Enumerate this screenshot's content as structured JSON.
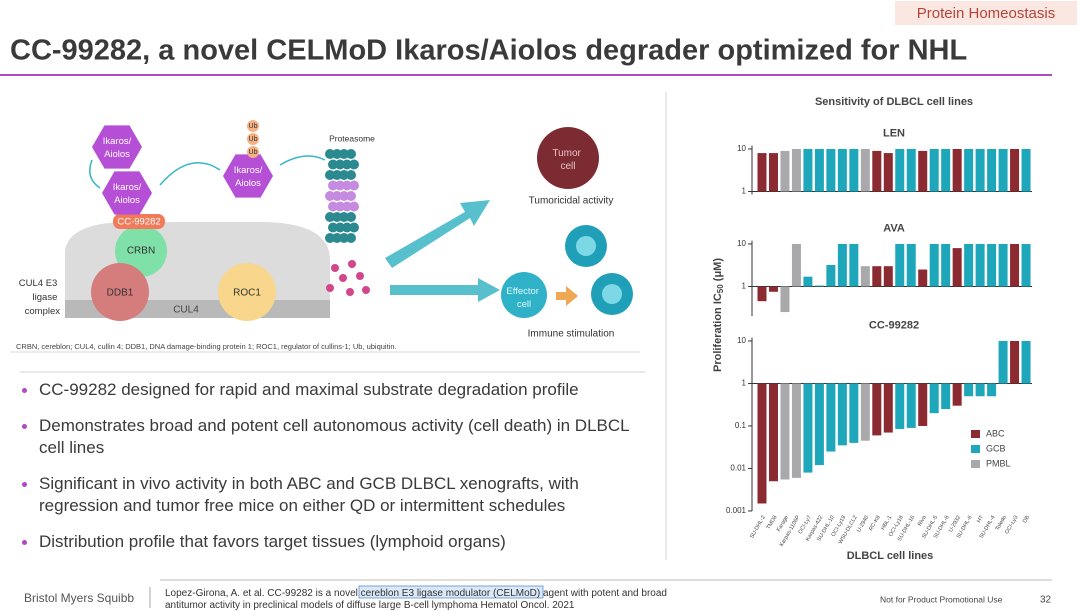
{
  "tag": "Protein Homeostasis",
  "title": "CC-99282, a novel CELMoD Ikaros/Aiolos degrader optimized for NHL",
  "diagram": {
    "ikaros": [
      "Ikaros/",
      "Aiolos"
    ],
    "ub": "Ub",
    "drug": "CC-99282",
    "crbn": "CRBN",
    "ddb1": "DDB1",
    "roc1": "ROC1",
    "cul4": "CUL4",
    "complex": [
      "CUL4 E3",
      "ligase",
      "complex"
    ],
    "proteasome": "Proteasome",
    "tumor": [
      "Tumor",
      "cell"
    ],
    "tumoricidal": "Tumoricidal activity",
    "effector": [
      "Effector",
      "cell"
    ],
    "immune": "Immune stimulation",
    "caption": "CRBN, cereblon; CUL4, cullin 4; DDB1, DNA damage-binding protein 1; ROC1, regulator of cullins-1; Ub, ubiquitin."
  },
  "bullets": [
    "CC-99282 designed for rapid and maximal substrate degradation profile",
    "Demonstrates broad and potent cell autonomous activity (cell death) in DLBCL cell lines",
    "Significant in vivo activity in both ABC and GCB DLBCL xenografts, with regression and tumor free mice on either QD or intermittent schedules",
    "Distribution profile that favors target tissues (lymphoid organs)"
  ],
  "footer": {
    "logo": "Bristol Myers Squibb",
    "citation": [
      "Lopez-Girona, A. et al. CC-99282 is a ",
      "novel cereblon E3 ligase modulator",
      " (CELMoD) agent with potent and broad",
      "antitumor activity in preclinical models of diffuse large B-cell lymphoma Hematol Oncol. 2021"
    ],
    "notice": "Not for Product Promotional Use",
    "page": "32"
  },
  "chart_data": {
    "type": "bar",
    "title": "Sensitivity of DLBCL cell lines",
    "x_label": "DLBCL cell lines",
    "y_label": {
      "main": "Proliferation IC",
      "sub": "50",
      "unit": "(μM)"
    },
    "log_scale": true,
    "categories": [
      "SU-DHL-2",
      "TMD8",
      "Farage",
      "Karpas-1106P",
      "OCI-Ly7",
      "Karpas-422",
      "SU-DHL-10",
      "OCI-Ly19",
      "WSU-DLCL2",
      "U-2940",
      "RC-K8",
      "HBL-1",
      "OCI-Ly18",
      "SU-DHL-16",
      "Riva",
      "SU-DHL-5",
      "SU-DHL-8",
      "U-2932",
      "SU-DHL-6",
      "HT",
      "SU-DHL-4",
      "Toledo",
      "OCI-Ly3",
      "DB"
    ],
    "panels": [
      {
        "title": "LEN",
        "ylim": [
          0.85,
          12
        ],
        "yticks": [
          1,
          10
        ],
        "series": [
          {
            "name": "ABC",
            "color": "#8b2a30",
            "values": [
              8,
              8,
              null,
              null,
              null,
              null,
              null,
              null,
              null,
              null,
              9,
              8,
              null,
              null,
              9,
              null,
              null,
              10,
              null,
              null,
              null,
              null,
              10,
              null
            ]
          },
          {
            "name": "GCB",
            "color": "#1ea6bb",
            "values": [
              null,
              null,
              null,
              null,
              10,
              10,
              10,
              10,
              10,
              null,
              null,
              null,
              10,
              10,
              null,
              10,
              10,
              null,
              10,
              10,
              10,
              10,
              null,
              10
            ]
          },
          {
            "name": "PMBL",
            "color": "#a9a9ab",
            "values": [
              null,
              null,
              9,
              10,
              null,
              null,
              null,
              null,
              null,
              10,
              null,
              null,
              null,
              null,
              null,
              null,
              null,
              null,
              null,
              null,
              null,
              null,
              null,
              null
            ]
          }
        ]
      },
      {
        "title": "AVA",
        "ylim": [
          0.2,
          12
        ],
        "yticks": [
          1,
          10
        ],
        "series": [
          {
            "name": "ABC",
            "color": "#8b2a30",
            "values": [
              0.45,
              0.75,
              null,
              null,
              null,
              null,
              null,
              null,
              null,
              null,
              3,
              3,
              null,
              null,
              2.5,
              null,
              null,
              8,
              null,
              null,
              null,
              null,
              10,
              null
            ]
          },
          {
            "name": "GCB",
            "color": "#1ea6bb",
            "values": [
              null,
              null,
              null,
              null,
              1.7,
              1.05,
              3.2,
              10,
              10,
              null,
              null,
              null,
              10,
              10,
              null,
              10,
              10,
              null,
              10,
              10,
              10,
              10,
              null,
              10
            ]
          },
          {
            "name": "PMBL",
            "color": "#a9a9ab",
            "values": [
              null,
              null,
              0.25,
              10,
              null,
              null,
              null,
              null,
              null,
              3,
              null,
              null,
              null,
              null,
              null,
              null,
              null,
              null,
              null,
              null,
              null,
              null,
              null,
              null
            ]
          }
        ]
      },
      {
        "title": "CC-99282",
        "ylim": [
          0.001,
          12
        ],
        "yticks": [
          0.001,
          0.01,
          0.1,
          1,
          10
        ],
        "series": [
          {
            "name": "ABC",
            "color": "#8b2a30",
            "values": [
              0.0015,
              0.005,
              null,
              null,
              null,
              null,
              null,
              null,
              null,
              null,
              0.06,
              0.07,
              null,
              null,
              0.1,
              null,
              null,
              0.3,
              null,
              null,
              null,
              null,
              10,
              null
            ]
          },
          {
            "name": "GCB",
            "color": "#1ea6bb",
            "values": [
              null,
              null,
              null,
              null,
              0.008,
              0.012,
              0.025,
              0.035,
              0.04,
              null,
              null,
              null,
              0.085,
              0.09,
              null,
              0.2,
              0.25,
              null,
              0.5,
              0.5,
              0.5,
              10,
              null,
              10
            ]
          },
          {
            "name": "PMBL",
            "color": "#a9a9ab",
            "values": [
              null,
              null,
              0.0055,
              0.006,
              null,
              null,
              null,
              null,
              null,
              0.045,
              null,
              null,
              null,
              null,
              null,
              null,
              null,
              null,
              null,
              null,
              null,
              null,
              null,
              null
            ]
          }
        ]
      }
    ]
  }
}
